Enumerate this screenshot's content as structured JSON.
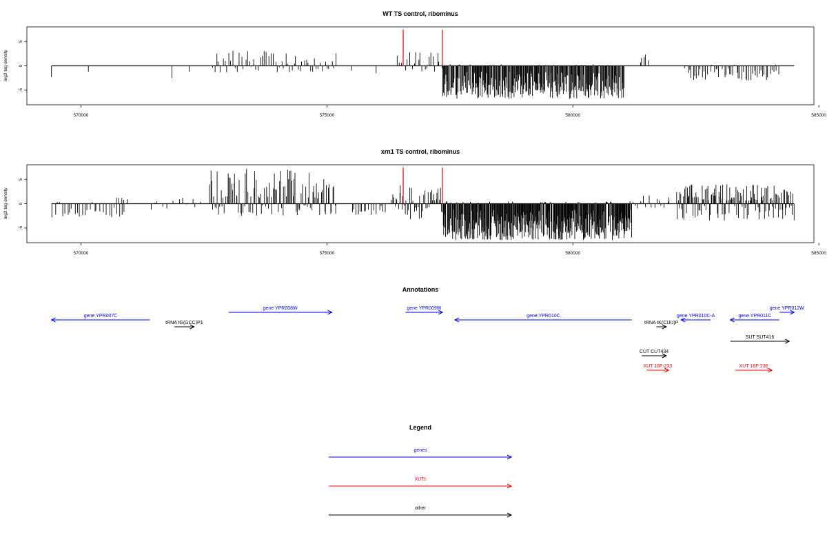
{
  "chart_data": [
    {
      "type": "bar",
      "title": "WT TS control, ribominus",
      "ylabel": "log2 tag density",
      "xlabel": "",
      "xlim": [
        568900,
        584900
      ],
      "ylim": [
        -8,
        8
      ],
      "x_ticks": [
        570000,
        575000,
        580000,
        585000
      ],
      "y_ticks": [
        5,
        0,
        -5
      ],
      "markers": [
        576550,
        577350
      ],
      "marker_color": "#ff0000",
      "bar_color": "#000000",
      "signal_regions": [
        {
          "from": 569400,
          "to": 569420,
          "max": 0,
          "min": -2.3,
          "density": 1
        },
        {
          "from": 570150,
          "to": 570170,
          "max": 0,
          "min": -1.2,
          "density": 1
        },
        {
          "from": 571850,
          "to": 571870,
          "max": 0,
          "min": -2.5,
          "density": 1
        },
        {
          "from": 572200,
          "to": 572220,
          "max": 0,
          "min": -1.2,
          "density": 1
        },
        {
          "from": 572650,
          "to": 575200,
          "max": 3.2,
          "min": -1.5,
          "density": 60
        },
        {
          "from": 575500,
          "to": 575520,
          "max": 0,
          "min": -1.0,
          "density": 1
        },
        {
          "from": 576000,
          "to": 576020,
          "max": 0,
          "min": -1.5,
          "density": 1
        },
        {
          "from": 576400,
          "to": 577350,
          "max": 3.0,
          "min": -1.5,
          "density": 22
        },
        {
          "from": 577350,
          "to": 581050,
          "max": 0.3,
          "min": -6.8,
          "density": 300
        },
        {
          "from": 581350,
          "to": 581550,
          "max": 2.5,
          "min": 0,
          "density": 5
        },
        {
          "from": 582250,
          "to": 584200,
          "max": 0.3,
          "min": -3.0,
          "density": 55
        }
      ]
    },
    {
      "type": "bar",
      "title": "xrn1 TS control, ribominus",
      "ylabel": "log2 tag density",
      "xlabel": "",
      "xlim": [
        568900,
        584900
      ],
      "ylim": [
        -8,
        8
      ],
      "x_ticks": [
        570000,
        575000,
        580000,
        585000
      ],
      "y_ticks": [
        5,
        0,
        -5
      ],
      "markers": [
        576550,
        577350
      ],
      "marker_color": "#ff0000",
      "bar_color": "#000000",
      "signal_regions": [
        {
          "from": 569400,
          "to": 570900,
          "max": 0.5,
          "min": -2.8,
          "density": 30
        },
        {
          "from": 570700,
          "to": 570950,
          "max": 1.8,
          "min": 0,
          "density": 5
        },
        {
          "from": 571350,
          "to": 572500,
          "max": 1.5,
          "min": -1.5,
          "density": 12
        },
        {
          "from": 572600,
          "to": 575200,
          "max": 7.2,
          "min": -2.5,
          "density": 110
        },
        {
          "from": 575500,
          "to": 576200,
          "max": 0.3,
          "min": -2.5,
          "density": 18
        },
        {
          "from": 576300,
          "to": 577350,
          "max": 3.8,
          "min": -3.2,
          "density": 45
        },
        {
          "from": 577350,
          "to": 581200,
          "max": 0.5,
          "min": -7.5,
          "density": 380
        },
        {
          "from": 581200,
          "to": 582000,
          "max": 2.3,
          "min": -1.0,
          "density": 15
        },
        {
          "from": 582100,
          "to": 584500,
          "max": 4.0,
          "min": -3.5,
          "density": 140
        }
      ]
    }
  ],
  "annotations": {
    "title": "Annotations",
    "items": [
      {
        "label": "gene YPR007C",
        "kind": "gene",
        "from": 569400,
        "to": 571400,
        "strand": "-",
        "row": 1,
        "label_side": "above"
      },
      {
        "label": "tRNA tG(GCC)P1",
        "kind": "other",
        "from": 571900,
        "to": 572300,
        "strand": "+",
        "row": 2,
        "label_side": "above"
      },
      {
        "label": "gene YPR008W",
        "kind": "gene",
        "from": 573000,
        "to": 575100,
        "strand": "+",
        "row": 0,
        "label_side": "above"
      },
      {
        "label": "gene YPR009W",
        "kind": "gene",
        "from": 576600,
        "to": 577350,
        "strand": "+",
        "row": 0,
        "label_side": "above"
      },
      {
        "label": "gene YPR010C",
        "kind": "gene",
        "from": 577600,
        "to": 581200,
        "strand": "-",
        "row": 1,
        "label_side": "above"
      },
      {
        "label": "tRNA tK(CUU)P",
        "kind": "other",
        "from": 581700,
        "to": 581900,
        "strand": "+",
        "row": 2,
        "label_side": "above"
      },
      {
        "label": "gene YPR010C-A",
        "kind": "gene",
        "from": 582200,
        "to": 582800,
        "strand": "-",
        "row": 1,
        "label_side": "above"
      },
      {
        "label": "gene YPR011C",
        "kind": "gene",
        "from": 583200,
        "to": 584200,
        "strand": "-",
        "row": 1,
        "label_side": "above"
      },
      {
        "label": "gene YPR012W",
        "kind": "gene",
        "from": 584200,
        "to": 584500,
        "strand": "+",
        "row": 0,
        "label_side": "above"
      },
      {
        "label": "SUT SUT416",
        "kind": "other",
        "from": 583200,
        "to": 584400,
        "strand": "+",
        "row": 3,
        "label_side": "above"
      },
      {
        "label": "CUT CUT434",
        "kind": "other",
        "from": 581400,
        "to": 581900,
        "strand": "+",
        "row": 4,
        "label_side": "above"
      },
      {
        "label": "XUT 16F-233",
        "kind": "xut",
        "from": 581500,
        "to": 581950,
        "strand": "+",
        "row": 5,
        "label_side": "above"
      },
      {
        "label": "XUT 16F-236",
        "kind": "xut",
        "from": 583300,
        "to": 584050,
        "strand": "+",
        "row": 5,
        "label_side": "above"
      }
    ]
  },
  "legend": {
    "title": "Legend",
    "entries": [
      {
        "label": "genes",
        "color": "#0000ff"
      },
      {
        "label": "XUTs",
        "color": "#ff0000"
      },
      {
        "label": "other",
        "color": "#000000"
      }
    ]
  },
  "colors": {
    "gene": "#0000ff",
    "xut": "#ff0000",
    "other": "#000000",
    "axis": "#000000",
    "background": "#ffffff"
  }
}
